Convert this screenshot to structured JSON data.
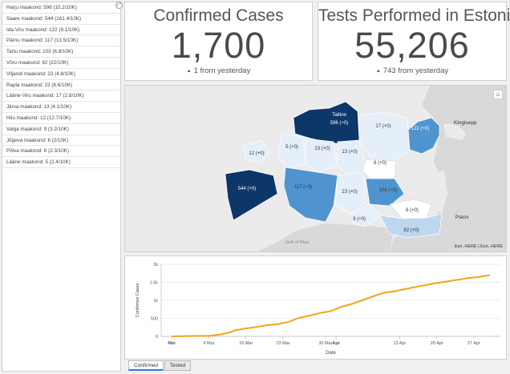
{
  "regions": [
    "Harju maakond: 596 (10.2/10K)",
    "Saare maakond: 544 (161.4/10K)",
    "Ida-Viru maakond: 122 (9.1/10K)",
    "Pärnu maakond: 117 (13.5/10K)",
    "Tartu maakond: 103 (6.8/10K)",
    "Võru maakond: 82 (22/10K)",
    "Viljandi maakond: 23 (4.8/10K)",
    "Rapla maakond: 23 (6.6/10K)",
    "Lääne-Viru maakond: 17 (2.8/10K)",
    "Järva maakond: 13 (4.1/10K)",
    "Hiiu maakond: 12 (12.7/10K)",
    "Valga maakond: 9 (3.2/10K)",
    "Jõgeva maakond: 6 (2/10K)",
    "Põlva maakond: 6 (2.3/10K)",
    "Lääne maakond: 5 (2.4/10K)"
  ],
  "confirmed": {
    "title": "Confirmed Cases",
    "value": "1,700",
    "change": "1 from yesterday"
  },
  "tests": {
    "title": "Tests Performed in Estonia",
    "value": "55,206",
    "change": "743 from yesterday"
  },
  "map": {
    "attribution": "Esri, HERE | Esri, HERE",
    "places": {
      "tallinn": "Tallinn",
      "kingisepp": "Kingisepp",
      "pskov": "Pskov",
      "gulf": "Gulf of Riga"
    },
    "labels": {
      "harju": "596 (+0)",
      "ida_viru": "122 (+0)",
      "laane_viru": "17 (+0)",
      "hiiu": "12 (+0)",
      "laane": "5 (+0)",
      "rapla": "23 (+0)",
      "jarva": "13 (+0)",
      "jogeva": "6 (+0)",
      "saare": "544 (+0)",
      "parnu": "117 (+0)",
      "viljandi": "23 (+0)",
      "tartu": "103 (+0)",
      "valga": "9 (+0)",
      "polva": "6 (+0)",
      "voru": "82 (+0)"
    },
    "colors": {
      "dark": "#0d3669",
      "mid": "#4f94cf",
      "light": "#bcd7ee",
      "pale": "#e4eff9",
      "land": "#d9d9d9",
      "sea": "#ebebeb"
    }
  },
  "chart_data": {
    "type": "line",
    "xlabel": "Date",
    "ylabel": "Confirmed Cases",
    "ylim": [
      0,
      2000
    ],
    "yticks": [
      0,
      500,
      1000,
      1500,
      2000
    ],
    "ytick_labels": [
      "0",
      "500",
      "1k",
      "1.5k",
      "2k"
    ],
    "xticks": [
      0,
      7,
      14,
      21,
      29,
      31,
      43,
      50,
      57
    ],
    "xtick_labels": [
      "Mar",
      "9 Mar",
      "16 Mar",
      "23 Mar",
      "30 Mar",
      "Apr",
      "13 Apr",
      "20 Apr",
      "27 Apr"
    ],
    "xrange": [
      -2,
      62
    ],
    "color": "#f5a31a",
    "x": [
      0,
      4,
      7,
      9,
      11,
      12,
      14,
      16,
      18,
      20,
      22,
      24,
      26,
      28,
      30,
      32,
      34,
      36,
      38,
      40,
      42,
      44,
      46,
      48,
      50,
      52,
      54,
      56,
      58,
      60
    ],
    "y": [
      1,
      10,
      13,
      50,
      110,
      170,
      220,
      260,
      310,
      340,
      400,
      510,
      575,
      650,
      700,
      820,
      900,
      1005,
      1110,
      1210,
      1250,
      1310,
      1370,
      1425,
      1480,
      1525,
      1570,
      1620,
      1650,
      1700
    ]
  },
  "tabs": [
    "Confirmed",
    "Tested"
  ]
}
